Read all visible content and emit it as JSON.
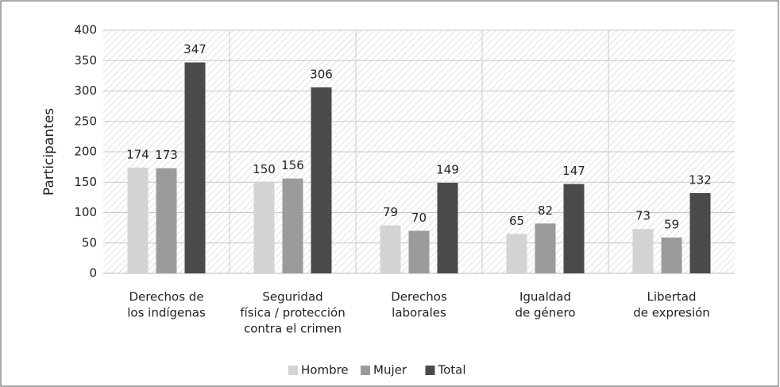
{
  "chart_data": {
    "type": "bar",
    "y_label": "Participantes",
    "categories": [
      [
        "Derechos de",
        "los indígenas"
      ],
      [
        "Seguridad",
        "física / protección",
        "contra el crimen"
      ],
      [
        "Derechos",
        "laborales"
      ],
      [
        "Igualdad",
        "de género"
      ],
      [
        "Libertad",
        "de expresión"
      ]
    ],
    "series": [
      {
        "name": "Hombre",
        "color": "#d3d3d3",
        "values": [
          174,
          150,
          79,
          65,
          73
        ]
      },
      {
        "name": "Mujer",
        "color": "#9b9b9b",
        "values": [
          173,
          156,
          70,
          82,
          59
        ]
      },
      {
        "name": "Total",
        "color": "#4a4a4a",
        "values": [
          347,
          306,
          149,
          147,
          132
        ]
      }
    ],
    "ylim": [
      0,
      400
    ],
    "yticks": [
      0,
      50,
      100,
      150,
      200,
      250,
      300,
      350,
      400
    ],
    "grid": true,
    "legend": "bottom"
  }
}
